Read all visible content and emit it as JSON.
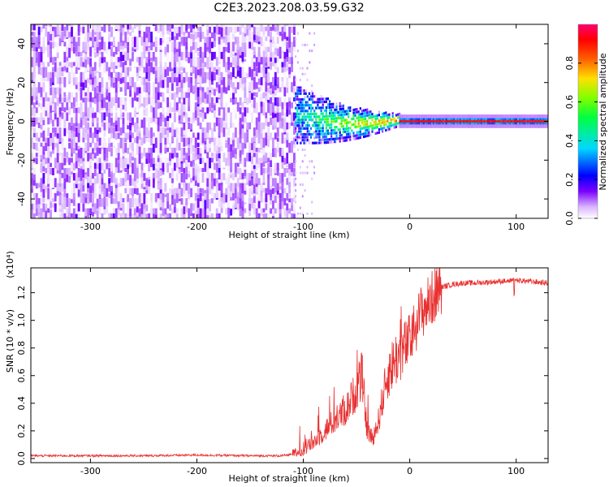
{
  "figure_title": "C2E3.2023.208.03.59.G32",
  "chart_data": [
    {
      "type": "heatmap",
      "xlabel": "Height of straight line (km)",
      "ylabel": "Frequency (Hz)",
      "xlim": [
        -356,
        130
      ],
      "ylim": [
        -50,
        50
      ],
      "x_ticks": [
        -300,
        -200,
        -100,
        0,
        100
      ],
      "x_tick_labels": [
        "-300",
        "-200",
        "-100",
        "0",
        "100"
      ],
      "y_ticks": [
        -40,
        -20,
        0,
        20,
        40
      ],
      "y_tick_labels": [
        "-40",
        "-20",
        "0",
        "20",
        "40"
      ],
      "colorbar": {
        "label": "Normalized spectral amplitude",
        "range": [
          0,
          1
        ],
        "ticks": [
          0.0,
          0.2,
          0.4,
          0.6,
          0.8
        ],
        "tick_labels": [
          "0.0",
          "0.2",
          "0.4",
          "0.6",
          "0.8"
        ],
        "colormap": [
          "#ffffff",
          "#c080ff",
          "#6000ff",
          "#0000ff",
          "#00c0ff",
          "#00ff80",
          "#00ff00",
          "#c0ff00",
          "#ffc000",
          "#ff4000",
          "#ff0000",
          "#ff0080"
        ]
      },
      "regions": {
        "noise": {
          "x_range": [
            -356,
            -108
          ],
          "freq_range": [
            -50,
            50
          ],
          "amplitude_range": [
            0.0,
            0.12
          ]
        },
        "transition": {
          "x_range": [
            -108,
            -10
          ],
          "center_freq_range": [
            -4,
            6
          ],
          "amplitude_range": [
            0.1,
            0.7
          ]
        },
        "carrier": {
          "x_range": [
            -10,
            130
          ],
          "center_freq": 0,
          "amplitude_range": [
            0.8,
            1.0
          ]
        }
      }
    },
    {
      "type": "line",
      "xlabel": "Height of straight line (km)",
      "ylabel": "SNR (10 * v/v)",
      "scale_label": "(x10⁴)",
      "xlim": [
        -356,
        130
      ],
      "ylim": [
        -0.03,
        1.38
      ],
      "x_ticks": [
        -300,
        -200,
        -100,
        0,
        100
      ],
      "x_tick_labels": [
        "-300",
        "-200",
        "-100",
        "0",
        "100"
      ],
      "y_ticks": [
        0.0,
        0.2,
        0.4,
        0.6,
        0.8,
        1.0,
        1.2
      ],
      "y_tick_labels": [
        "0.0",
        "0.2",
        "0.4",
        "0.6",
        "0.8",
        "1.0",
        "1.2"
      ],
      "color": "#e83030",
      "series": [
        {
          "x": [
            -356,
            -300,
            -250,
            -200,
            -150,
            -120,
            -110,
            -100,
            -90,
            -80,
            -70,
            -60,
            -50,
            -45,
            -40,
            -35,
            -30,
            -25,
            -20,
            -15,
            -10,
            -5,
            0,
            5,
            10,
            15,
            20,
            25,
            30,
            40,
            50,
            60,
            80,
            100,
            115,
            130
          ],
          "y": [
            0.02,
            0.02,
            0.02,
            0.025,
            0.02,
            0.02,
            0.03,
            0.06,
            0.12,
            0.2,
            0.28,
            0.35,
            0.5,
            0.6,
            0.2,
            0.15,
            0.25,
            0.45,
            0.62,
            0.7,
            0.75,
            0.8,
            0.85,
            0.95,
            1.05,
            1.1,
            1.15,
            1.2,
            1.24,
            1.26,
            1.27,
            1.27,
            1.28,
            1.29,
            1.28,
            1.27
          ]
        }
      ]
    }
  ]
}
